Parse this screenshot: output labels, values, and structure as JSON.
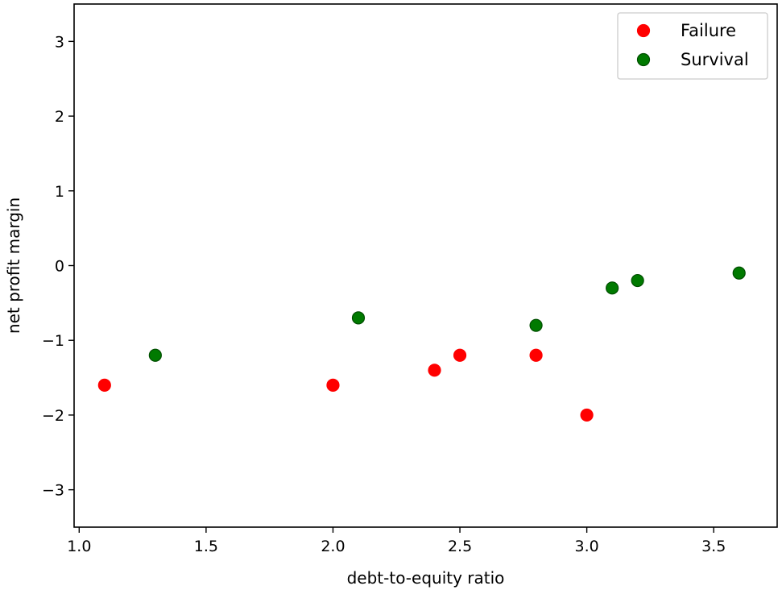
{
  "chart_data": {
    "type": "scatter",
    "xlabel": "debt-to-equity ratio",
    "ylabel": "net profit margin",
    "xlim": [
      0.98,
      3.75
    ],
    "ylim": [
      -3.5,
      3.5
    ],
    "xticks": [
      1.0,
      1.5,
      2.0,
      2.5,
      3.0,
      3.5
    ],
    "xtick_labels": [
      "1.0",
      "1.5",
      "2.0",
      "2.5",
      "3.0",
      "3.5"
    ],
    "yticks": [
      -3,
      -2,
      -1,
      0,
      1,
      2,
      3
    ],
    "ytick_labels": [
      "−3",
      "−2",
      "−1",
      "0",
      "1",
      "2",
      "3"
    ],
    "grid": false,
    "legend_position": "top-right",
    "series": [
      {
        "name": "Failure",
        "color": "#ff0000",
        "points": [
          {
            "x": 1.1,
            "y": -1.6
          },
          {
            "x": 2.0,
            "y": -1.6
          },
          {
            "x": 2.4,
            "y": -1.4
          },
          {
            "x": 2.5,
            "y": -1.2
          },
          {
            "x": 2.8,
            "y": -1.2
          },
          {
            "x": 3.0,
            "y": -2.0
          }
        ]
      },
      {
        "name": "Survival",
        "color": "#007a00",
        "points": [
          {
            "x": 1.3,
            "y": -1.2
          },
          {
            "x": 2.1,
            "y": -0.7
          },
          {
            "x": 2.8,
            "y": -0.8
          },
          {
            "x": 3.1,
            "y": -0.3
          },
          {
            "x": 3.2,
            "y": -0.2
          },
          {
            "x": 3.6,
            "y": -0.1
          }
        ]
      }
    ]
  }
}
